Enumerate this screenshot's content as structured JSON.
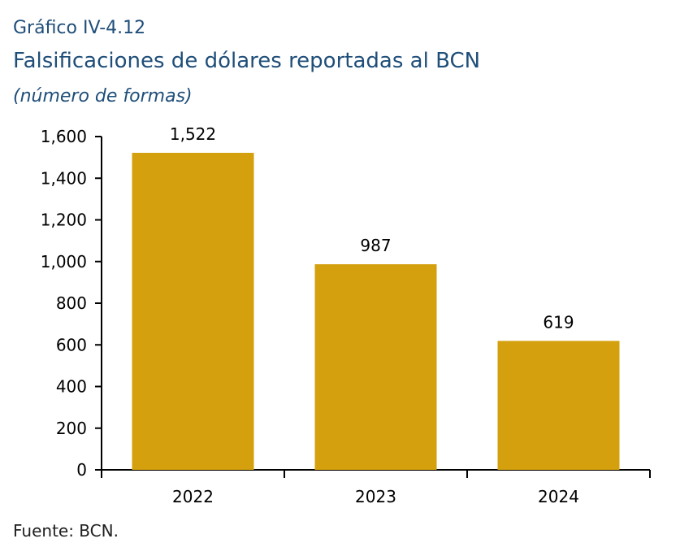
{
  "header": {
    "label": "Gráfico IV-4.12",
    "title": "Falsificaciones de dólares reportadas al BCN",
    "subtitle": "(número de formas)"
  },
  "footer": {
    "source": "Fuente: BCN."
  },
  "chart_data": {
    "type": "bar",
    "title": "Falsificaciones de dólares reportadas al BCN",
    "subtitle": "(número de formas)",
    "categories": [
      "2022",
      "2023",
      "2024"
    ],
    "values": [
      1522,
      987,
      619
    ],
    "data_labels": [
      "1,522",
      "987",
      "619"
    ],
    "xlabel": "",
    "ylabel": "",
    "ylim": [
      0,
      1600
    ],
    "yticks": [
      0,
      200,
      400,
      600,
      800,
      1000,
      1200,
      1400,
      1600
    ],
    "ytick_labels": [
      "0",
      "200",
      "400",
      "600",
      "800",
      "1,000",
      "1,200",
      "1,400",
      "1,600"
    ],
    "grid": false,
    "legend": "none",
    "colors": {
      "bar": "#d4a00e",
      "axis": "#000000",
      "text": "#000000"
    }
  }
}
